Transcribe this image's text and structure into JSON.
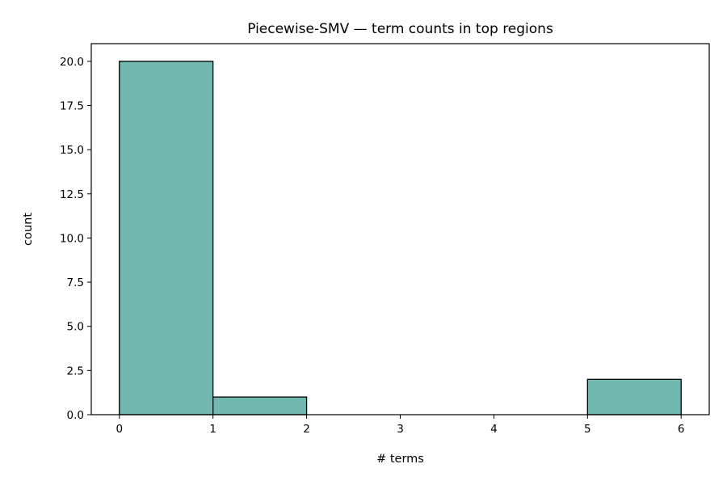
{
  "chart_data": {
    "type": "bar",
    "title": "Piecewise-SMV — term counts in top regions",
    "xlabel": "# terms",
    "ylabel": "count",
    "bins": [
      {
        "x0": 0,
        "x1": 1,
        "value": 20
      },
      {
        "x0": 1,
        "x1": 2,
        "value": 1
      },
      {
        "x0": 2,
        "x1": 3,
        "value": 0
      },
      {
        "x0": 3,
        "x1": 4,
        "value": 0
      },
      {
        "x0": 4,
        "x1": 5,
        "value": 0
      },
      {
        "x0": 5,
        "x1": 6,
        "value": 2
      }
    ],
    "xlim": [
      -0.3,
      6.3
    ],
    "ylim": [
      0,
      21
    ],
    "xticks": [
      "0",
      "1",
      "2",
      "3",
      "4",
      "5",
      "6"
    ],
    "yticks": [
      "0.0",
      "2.5",
      "5.0",
      "7.5",
      "10.0",
      "12.5",
      "15.0",
      "17.5",
      "20.0"
    ],
    "grid": false,
    "colors": {
      "bar_fill": "#73b7b1",
      "bar_edge": "#000000"
    }
  }
}
